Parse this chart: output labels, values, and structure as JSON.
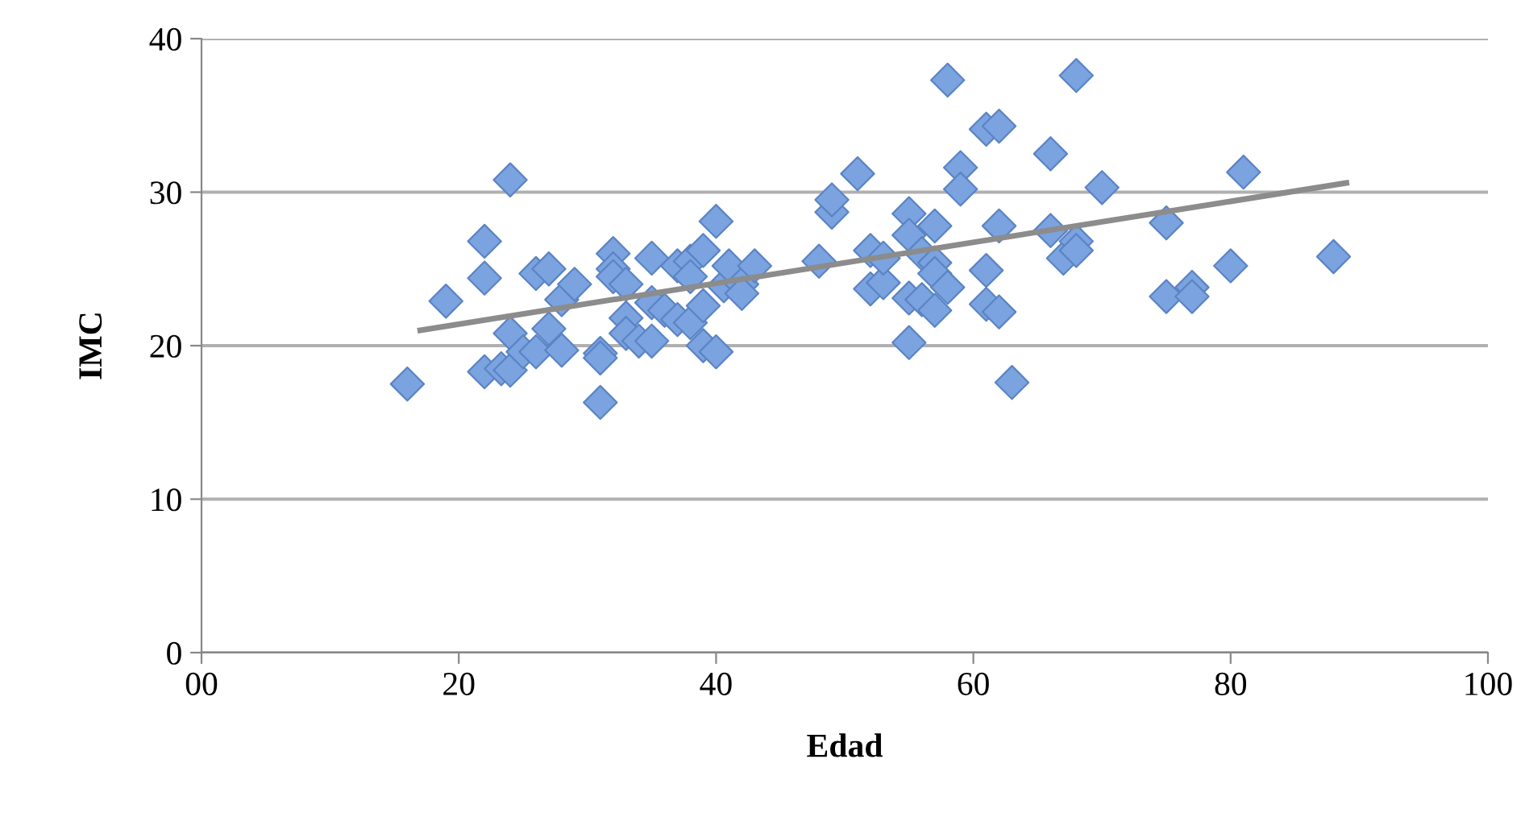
{
  "chart_data": {
    "type": "scatter",
    "xlabel": "Edad",
    "ylabel": "IMC",
    "xlim": [
      0,
      100
    ],
    "xticks": [
      {
        "value": 0,
        "label": "00"
      },
      20,
      40,
      60,
      80,
      100
    ],
    "ylim": [
      0,
      40
    ],
    "yticks": [
      0,
      10,
      20,
      30,
      40
    ],
    "grid": "y",
    "legend": false,
    "series": [
      {
        "marker": "diamond",
        "color": "#7ba3e0",
        "x": [
          16,
          19,
          22,
          22,
          22,
          23.3,
          24,
          24,
          24,
          25,
          26,
          26,
          27,
          27,
          28,
          28,
          29,
          31,
          31,
          31,
          32,
          32,
          32,
          33,
          33,
          33,
          34,
          35,
          35,
          35,
          36,
          37,
          37,
          38,
          38,
          38,
          39,
          39,
          39,
          40,
          40,
          40.6,
          41,
          42,
          42,
          43,
          48,
          49,
          49,
          51,
          52,
          52,
          53,
          53,
          55,
          55,
          55,
          55,
          56,
          56,
          57,
          57,
          57,
          57,
          58,
          58,
          59,
          59,
          61,
          61,
          61,
          62,
          62,
          62,
          63,
          66,
          66,
          67,
          68,
          68,
          68,
          70,
          75,
          75,
          77,
          77,
          80,
          81,
          88
        ],
        "values": [
          17.5,
          22.9,
          26.8,
          24.4,
          18.3,
          18.5,
          30.8,
          20.8,
          18.4,
          19.6,
          24.7,
          19.6,
          25,
          21.1,
          23,
          19.7,
          24,
          19.5,
          19.2,
          16.3,
          26,
          25,
          24.5,
          24,
          21.8,
          20.8,
          20.3,
          25.7,
          22.8,
          20.3,
          22.3,
          25.2,
          21.7,
          25.5,
          24.5,
          21.5,
          26.2,
          22.6,
          20,
          28.1,
          19.6,
          23.9,
          25.2,
          24,
          23.4,
          25.2,
          25.5,
          28.7,
          29.5,
          31.2,
          26.2,
          23.7,
          24.1,
          25.7,
          28.6,
          27.2,
          23.1,
          20.2,
          26,
          23,
          27.8,
          25.4,
          24.7,
          22.3,
          37.3,
          23.8,
          31.6,
          30.2,
          34.1,
          24.9,
          22.7,
          34.3,
          27.8,
          22.2,
          17.6,
          32.5,
          27.5,
          25.7,
          37.6,
          26.8,
          26.2,
          30.3,
          28,
          23.2,
          23.8,
          23.2,
          25.2,
          31.3,
          25.8
        ]
      },
      {
        "type": "line",
        "color": "#8c8c8c",
        "marker": "none",
        "line_style": "solid",
        "x": [
          17,
          89
        ],
        "values": [
          21,
          30.6
        ]
      }
    ]
  }
}
